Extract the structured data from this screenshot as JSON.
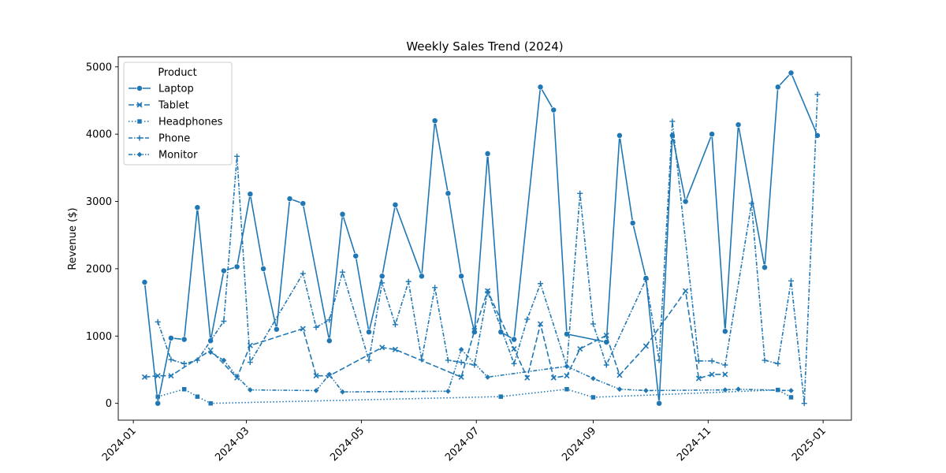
{
  "chart_data": {
    "type": "line",
    "title": "Weekly Sales Trend (2024)",
    "xlabel": "",
    "ylabel": "Revenue ($)",
    "xlim": [
      "2023-12-24",
      "2025-01-16"
    ],
    "ylim": [
      -250,
      5150
    ],
    "x_ticks": [
      "2024-01-01",
      "2024-03-01",
      "2024-05-01",
      "2024-07-01",
      "2024-09-01",
      "2024-11-01",
      "2025-01-01"
    ],
    "x_tick_labels": [
      "2024-01",
      "2024-03",
      "2024-05",
      "2024-07",
      "2024-09",
      "2024-11",
      "2025-01"
    ],
    "y_ticks": [
      0,
      1000,
      2000,
      3000,
      4000,
      5000
    ],
    "y_tick_labels": [
      "0",
      "1000",
      "2000",
      "3000",
      "4000",
      "5000"
    ],
    "grid": false,
    "legend": {
      "title": "Product",
      "position": "top-left"
    },
    "color": "#1f77b4",
    "series": [
      {
        "name": "Laptop",
        "dash": "solid",
        "marker": "circle",
        "points": [
          [
            "2024-01-07",
            1800
          ],
          [
            "2024-01-14",
            0
          ],
          [
            "2024-01-21",
            970
          ],
          [
            "2024-01-28",
            950
          ],
          [
            "2024-02-04",
            2910
          ],
          [
            "2024-02-11",
            930
          ],
          [
            "2024-02-18",
            1970
          ],
          [
            "2024-02-25",
            2030
          ],
          [
            "2024-03-03",
            3110
          ],
          [
            "2024-03-10",
            2000
          ],
          [
            "2024-03-17",
            1100
          ],
          [
            "2024-03-24",
            3040
          ],
          [
            "2024-03-31",
            2970
          ],
          [
            "2024-04-14",
            930
          ],
          [
            "2024-04-21",
            2810
          ],
          [
            "2024-04-28",
            2190
          ],
          [
            "2024-05-05",
            1060
          ],
          [
            "2024-05-12",
            1890
          ],
          [
            "2024-05-19",
            2950
          ],
          [
            "2024-06-02",
            1890
          ],
          [
            "2024-06-09",
            4200
          ],
          [
            "2024-06-16",
            3120
          ],
          [
            "2024-06-23",
            1890
          ],
          [
            "2024-06-30",
            1060
          ],
          [
            "2024-07-07",
            3710
          ],
          [
            "2024-07-14",
            1060
          ],
          [
            "2024-07-21",
            950
          ],
          [
            "2024-08-04",
            4700
          ],
          [
            "2024-08-11",
            4360
          ],
          [
            "2024-08-18",
            1030
          ],
          [
            "2024-09-08",
            910
          ],
          [
            "2024-09-15",
            3980
          ],
          [
            "2024-09-22",
            2680
          ],
          [
            "2024-09-29",
            1860
          ],
          [
            "2024-10-06",
            0
          ],
          [
            "2024-10-13",
            3980
          ],
          [
            "2024-10-20",
            3000
          ],
          [
            "2024-11-03",
            4000
          ],
          [
            "2024-11-10",
            1070
          ],
          [
            "2024-11-17",
            4140
          ],
          [
            "2024-12-01",
            2020
          ],
          [
            "2024-12-08",
            4700
          ],
          [
            "2024-12-15",
            4910
          ],
          [
            "2024-12-29",
            3980
          ]
        ]
      },
      {
        "name": "Tablet",
        "dash": "dashed",
        "marker": "x",
        "points": [
          [
            "2024-01-07",
            390
          ],
          [
            "2024-01-14",
            410
          ],
          [
            "2024-01-21",
            410
          ],
          [
            "2024-02-11",
            790
          ],
          [
            "2024-02-25",
            380
          ],
          [
            "2024-03-03",
            860
          ],
          [
            "2024-03-31",
            1110
          ],
          [
            "2024-04-07",
            410
          ],
          [
            "2024-04-14",
            410
          ],
          [
            "2024-05-12",
            830
          ],
          [
            "2024-05-19",
            800
          ],
          [
            "2024-06-23",
            390
          ],
          [
            "2024-06-30",
            1080
          ],
          [
            "2024-07-07",
            1670
          ],
          [
            "2024-07-21",
            810
          ],
          [
            "2024-07-28",
            380
          ],
          [
            "2024-08-04",
            1180
          ],
          [
            "2024-08-11",
            380
          ],
          [
            "2024-08-18",
            410
          ],
          [
            "2024-08-25",
            810
          ],
          [
            "2024-09-08",
            1010
          ],
          [
            "2024-09-15",
            420
          ],
          [
            "2024-09-29",
            850
          ],
          [
            "2024-10-20",
            1670
          ],
          [
            "2024-10-27",
            370
          ],
          [
            "2024-11-03",
            430
          ],
          [
            "2024-11-10",
            430
          ]
        ]
      },
      {
        "name": "Headphones",
        "dash": "dotted",
        "marker": "square",
        "points": [
          [
            "2024-01-14",
            100
          ],
          [
            "2024-01-28",
            210
          ],
          [
            "2024-02-04",
            100
          ],
          [
            "2024-02-11",
            0
          ],
          [
            "2024-07-14",
            100
          ],
          [
            "2024-08-18",
            210
          ],
          [
            "2024-09-01",
            90
          ],
          [
            "2024-12-08",
            200
          ],
          [
            "2024-12-15",
            90
          ]
        ]
      },
      {
        "name": "Phone",
        "dash": "dashdot",
        "marker": "plus",
        "points": [
          [
            "2024-01-14",
            1210
          ],
          [
            "2024-01-21",
            650
          ],
          [
            "2024-01-28",
            590
          ],
          [
            "2024-02-04",
            640
          ],
          [
            "2024-02-18",
            1220
          ],
          [
            "2024-02-25",
            3670
          ],
          [
            "2024-03-03",
            610
          ],
          [
            "2024-03-31",
            1930
          ],
          [
            "2024-04-07",
            1130
          ],
          [
            "2024-04-14",
            1240
          ],
          [
            "2024-04-21",
            1950
          ],
          [
            "2024-05-05",
            640
          ],
          [
            "2024-05-12",
            1790
          ],
          [
            "2024-05-19",
            1170
          ],
          [
            "2024-05-26",
            1810
          ],
          [
            "2024-06-02",
            650
          ],
          [
            "2024-06-09",
            1720
          ],
          [
            "2024-06-16",
            640
          ],
          [
            "2024-06-23",
            610
          ],
          [
            "2024-06-30",
            570
          ],
          [
            "2024-07-07",
            1660
          ],
          [
            "2024-07-21",
            590
          ],
          [
            "2024-07-28",
            1250
          ],
          [
            "2024-08-04",
            1780
          ],
          [
            "2024-08-18",
            550
          ],
          [
            "2024-08-25",
            3120
          ],
          [
            "2024-09-01",
            1180
          ],
          [
            "2024-09-08",
            570
          ],
          [
            "2024-09-29",
            1840
          ],
          [
            "2024-10-06",
            640
          ],
          [
            "2024-10-13",
            4190
          ],
          [
            "2024-10-27",
            630
          ],
          [
            "2024-11-03",
            630
          ],
          [
            "2024-11-10",
            570
          ],
          [
            "2024-11-24",
            2970
          ],
          [
            "2024-12-01",
            640
          ],
          [
            "2024-12-08",
            590
          ],
          [
            "2024-12-15",
            1820
          ],
          [
            "2024-12-22",
            0
          ],
          [
            "2024-12-29",
            4590
          ]
        ]
      },
      {
        "name": "Monitor",
        "dash": "dashdotdot",
        "marker": "diamond",
        "points": [
          [
            "2024-02-11",
            760
          ],
          [
            "2024-02-18",
            640
          ],
          [
            "2024-02-25",
            400
          ],
          [
            "2024-03-03",
            200
          ],
          [
            "2024-04-07",
            190
          ],
          [
            "2024-04-14",
            430
          ],
          [
            "2024-04-21",
            170
          ],
          [
            "2024-06-16",
            180
          ],
          [
            "2024-06-23",
            800
          ],
          [
            "2024-07-07",
            390
          ],
          [
            "2024-08-18",
            550
          ],
          [
            "2024-09-01",
            370
          ],
          [
            "2024-09-15",
            210
          ],
          [
            "2024-09-29",
            190
          ],
          [
            "2024-11-10",
            200
          ],
          [
            "2024-11-17",
            210
          ],
          [
            "2024-12-15",
            190
          ]
        ]
      }
    ]
  }
}
